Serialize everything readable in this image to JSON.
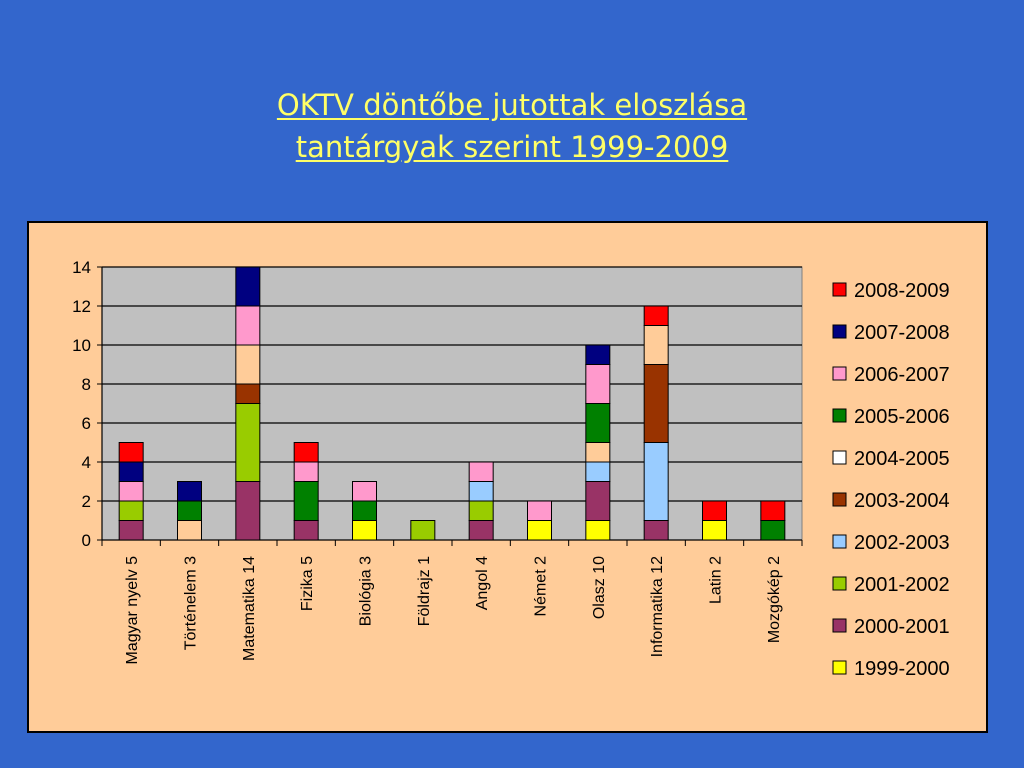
{
  "title": {
    "line1": "OKTV döntőbe jutottak eloszlása",
    "line2": "tantárgyak szerint   1999-2009"
  },
  "colors": {
    "slide_background": "#3366CC",
    "title_text": "#FFFF66",
    "chart_area_background": "#FFCC99",
    "plot_background": "#C0C0C0"
  },
  "chart_data": {
    "type": "bar",
    "stacked": true,
    "title": "OKTV döntőbe jutottak eloszlása tantárgyak szerint   1999-2009",
    "xlabel": "",
    "ylabel": "",
    "ylim": [
      0,
      14
    ],
    "yticks": [
      0,
      2,
      4,
      6,
      8,
      10,
      12,
      14
    ],
    "grid": true,
    "legend_position": "right",
    "categories": [
      "Magyar nyelv   5",
      "Történelem 3",
      "Matematika 14",
      "Fizika 5",
      "Biológia 3",
      "Földrajz 1",
      "Angol 4",
      "Német 2",
      "Olasz 10",
      "Informatika 12",
      "Latin 2",
      "Mozgókép 2"
    ],
    "series": [
      {
        "name": "1999-2000",
        "color": "#FFFF00",
        "values": [
          0,
          0,
          0,
          0,
          1,
          0,
          0,
          1,
          1,
          0,
          1,
          0
        ]
      },
      {
        "name": "2000-2001",
        "color": "#993366",
        "values": [
          1,
          0,
          3,
          1,
          0,
          0,
          1,
          0,
          2,
          1,
          0,
          0
        ]
      },
      {
        "name": "2001-2002",
        "color": "#99CC00",
        "values": [
          1,
          0,
          4,
          0,
          0,
          1,
          1,
          0,
          0,
          0,
          0,
          0
        ]
      },
      {
        "name": "2002-2003",
        "color": "#99CCFF",
        "values": [
          0,
          0,
          0,
          0,
          0,
          0,
          1,
          0,
          1,
          4,
          0,
          0
        ]
      },
      {
        "name": "2003-2004",
        "color": "#993300",
        "values": [
          0,
          0,
          1,
          0,
          0,
          0,
          0,
          0,
          0,
          4,
          0,
          0
        ]
      },
      {
        "name": "2004-2005",
        "color": "#FFFFFF",
        "alt_color": "#FFCC99",
        "values": [
          0,
          1,
          2,
          0,
          0,
          0,
          0,
          0,
          1,
          2,
          0,
          0
        ]
      },
      {
        "name": "2005-2006",
        "color": "#008000",
        "values": [
          0,
          1,
          0,
          2,
          1,
          0,
          0,
          0,
          2,
          0,
          0,
          1
        ]
      },
      {
        "name": "2006-2007",
        "color": "#FF99CC",
        "values": [
          1,
          0,
          2,
          1,
          1,
          0,
          1,
          1,
          2,
          0,
          0,
          0
        ]
      },
      {
        "name": "2007-2008",
        "color": "#000080",
        "values": [
          1,
          1,
          2,
          0,
          0,
          0,
          0,
          0,
          1,
          0,
          0,
          0
        ]
      },
      {
        "name": "2008-2009",
        "color": "#FF0000",
        "values": [
          1,
          0,
          0,
          1,
          0,
          0,
          0,
          0,
          0,
          1,
          1,
          1
        ]
      }
    ]
  }
}
